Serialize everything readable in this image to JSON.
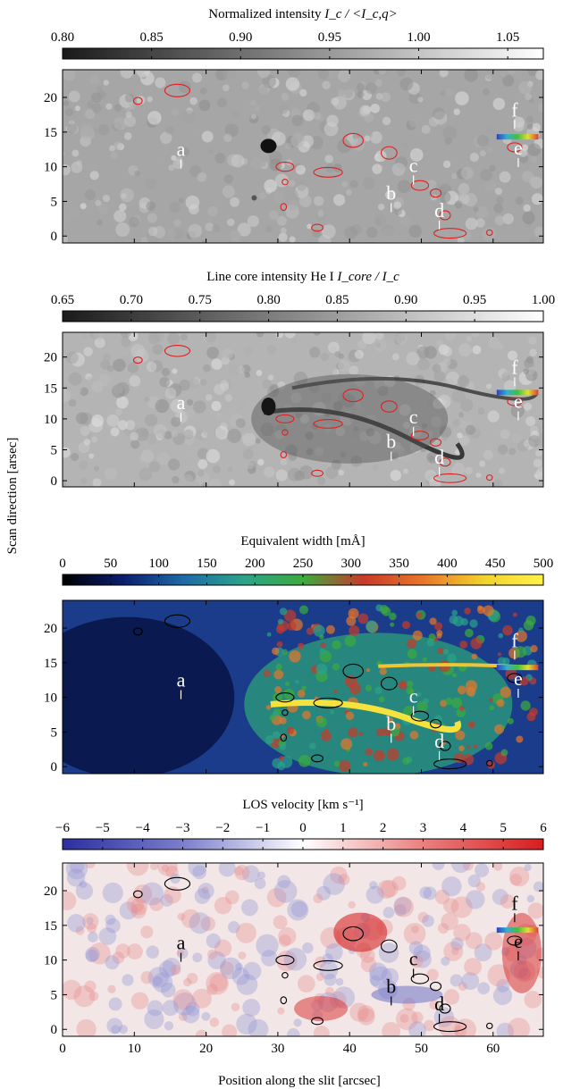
{
  "chart_data": {
    "type": "heatmap",
    "ylabel_shared": "Scan direction   [arsec]",
    "xlabel": "Position along the slit   [arcsec]",
    "x_range": [
      0,
      67
    ],
    "y_range": [
      -1,
      24
    ],
    "x_ticks": [
      "0",
      "10",
      "20",
      "30",
      "40",
      "50",
      "60"
    ],
    "y_ticks": [
      "0",
      "5",
      "10",
      "15",
      "20"
    ],
    "region_labels": [
      {
        "label": "a",
        "x": 16.5,
        "y": 11.3
      },
      {
        "label": "b",
        "x": 45.8,
        "y": 5.0
      },
      {
        "label": "c",
        "x": 48.9,
        "y": 9.0
      },
      {
        "label": "d",
        "x": 52.5,
        "y": 2.5
      },
      {
        "label": "e",
        "x": 63.5,
        "y": 11.5
      },
      {
        "label": "f",
        "x": 63.0,
        "y": 17.0
      }
    ],
    "panels": [
      {
        "id": "continuum",
        "colorbar_title_text": "Normalized intensity",
        "colorbar_title_math": "I_c / <I_c,q>",
        "colorbar_range": [
          0.8,
          1.07
        ],
        "colorbar_ticks": [
          "0.80",
          "0.85",
          "0.90",
          "0.95",
          "1.00",
          "1.05"
        ],
        "colormap": [
          "#1a1a1a",
          "#ffffff"
        ],
        "contour_color": "#e02020",
        "label_color": "#ffffff"
      },
      {
        "id": "he-core",
        "colorbar_title_text": "Line core intensity He I",
        "colorbar_title_math": "I_core / I_c",
        "colorbar_range": [
          0.65,
          1.0
        ],
        "colorbar_ticks": [
          "0.65",
          "0.70",
          "0.75",
          "0.80",
          "0.85",
          "0.90",
          "0.95",
          "1.00"
        ],
        "colormap": [
          "#1a1a1a",
          "#ffffff"
        ],
        "contour_color": "#e02020",
        "label_color": "#ffffff"
      },
      {
        "id": "equivalent-width",
        "colorbar_title_text": "Equivalent width   [mÅ]",
        "colorbar_title_math": "",
        "colorbar_range": [
          0,
          500
        ],
        "colorbar_ticks": [
          "0",
          "50",
          "100",
          "150",
          "200",
          "250",
          "300",
          "350",
          "400",
          "450",
          "500"
        ],
        "colormap": [
          "#000000",
          "#0a1d6e",
          "#1e6aa8",
          "#2aa38a",
          "#3dab3e",
          "#c83a2a",
          "#e8762a",
          "#f2d22c",
          "#fff24a"
        ],
        "contour_color": "#000000",
        "label_color": "#ffffff"
      },
      {
        "id": "los-velocity",
        "colorbar_title_text": "LOS velocity   [km s⁻¹]",
        "colorbar_title_math": "",
        "colorbar_range": [
          -6,
          6
        ],
        "colorbar_ticks": [
          "−6",
          "−5",
          "−4",
          "−3",
          "−2",
          "−1",
          "0",
          "1",
          "2",
          "3",
          "4",
          "5",
          "6"
        ],
        "colormap": [
          "#2b2fa0",
          "#7b7ecb",
          "#ffffff",
          "#e98080",
          "#d61e1e"
        ],
        "contour_color": "#000000",
        "label_color": "#000000"
      }
    ],
    "contours": [
      {
        "x": 10.5,
        "y": 19.5,
        "w": 1.2,
        "h": 1.0
      },
      {
        "x": 16.0,
        "y": 21.0,
        "w": 3.5,
        "h": 1.8
      },
      {
        "x": 31.0,
        "y": 10.0,
        "w": 2.5,
        "h": 1.3
      },
      {
        "x": 37.0,
        "y": 9.2,
        "w": 4.0,
        "h": 1.4
      },
      {
        "x": 40.5,
        "y": 13.8,
        "w": 2.8,
        "h": 2.0
      },
      {
        "x": 45.5,
        "y": 12.0,
        "w": 2.2,
        "h": 1.8
      },
      {
        "x": 49.8,
        "y": 7.3,
        "w": 2.4,
        "h": 1.4
      },
      {
        "x": 52.0,
        "y": 6.2,
        "w": 1.5,
        "h": 1.2
      },
      {
        "x": 35.5,
        "y": 1.2,
        "w": 1.6,
        "h": 1.0
      },
      {
        "x": 53.3,
        "y": 3.0,
        "w": 1.5,
        "h": 1.3
      },
      {
        "x": 54.0,
        "y": 0.4,
        "w": 4.5,
        "h": 1.4
      },
      {
        "x": 59.5,
        "y": 0.5,
        "w": 0.8,
        "h": 0.8
      },
      {
        "x": 63.0,
        "y": 12.8,
        "w": 2.0,
        "h": 1.3
      },
      {
        "x": 30.8,
        "y": 4.2,
        "w": 0.8,
        "h": 1.0
      },
      {
        "x": 31.0,
        "y": 7.8,
        "w": 0.8,
        "h": 0.8
      }
    ]
  }
}
